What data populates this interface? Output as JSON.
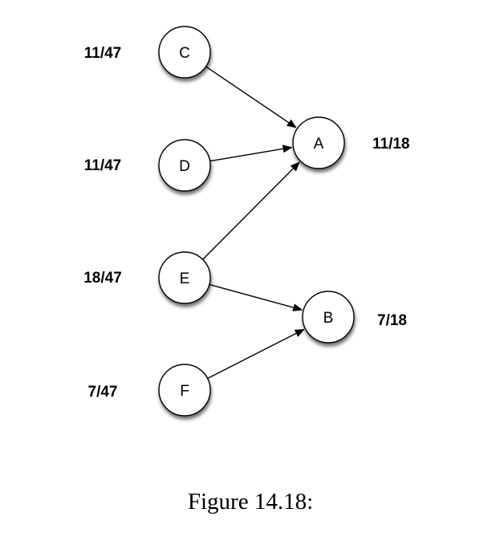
{
  "diagram": {
    "nodes": [
      {
        "id": "C",
        "label": "C",
        "value": "11/47"
      },
      {
        "id": "D",
        "label": "D",
        "value": "11/47"
      },
      {
        "id": "E",
        "label": "E",
        "value": "18/47"
      },
      {
        "id": "F",
        "label": "F",
        "value": "7/47"
      },
      {
        "id": "A",
        "label": "A",
        "value": "11/18"
      },
      {
        "id": "B",
        "label": "B",
        "value": "7/18"
      }
    ],
    "edges": [
      {
        "from": "C",
        "to": "A"
      },
      {
        "from": "D",
        "to": "A"
      },
      {
        "from": "E",
        "to": "A"
      },
      {
        "from": "E",
        "to": "B"
      },
      {
        "from": "F",
        "to": "B"
      }
    ]
  },
  "caption": "Figure 14.18:"
}
